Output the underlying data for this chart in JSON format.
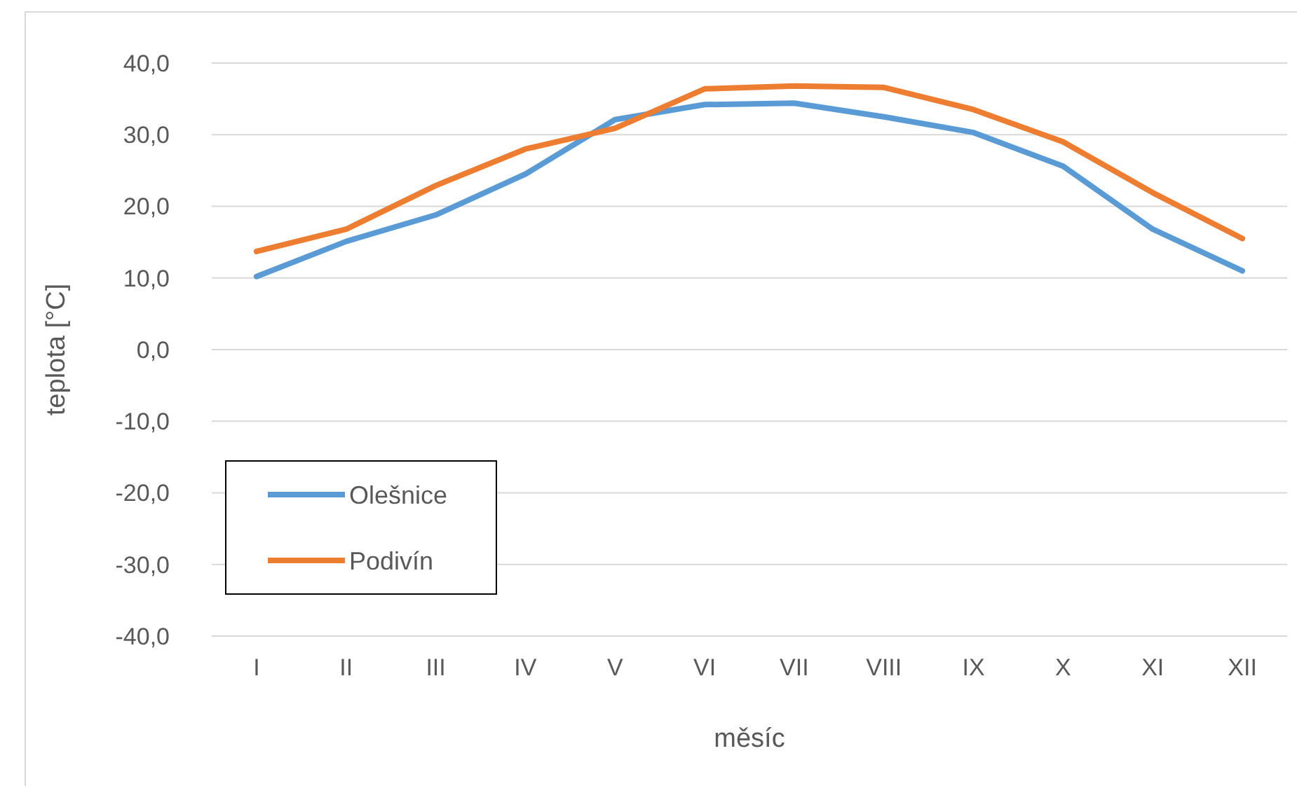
{
  "chart_data": {
    "type": "line",
    "xlabel": "měsíc",
    "ylabel": "teplota [°C]",
    "categories": [
      "I",
      "II",
      "III",
      "IV",
      "V",
      "VI",
      "VII",
      "VIII",
      "IX",
      "X",
      "XI",
      "XII"
    ],
    "series": [
      {
        "name": "Olešnice",
        "color": "#5b9bd5",
        "values": [
          10.2,
          15.1,
          18.8,
          24.5,
          32.1,
          34.2,
          34.4,
          32.5,
          30.3,
          25.6,
          16.8,
          11.0
        ]
      },
      {
        "name": "Podivín",
        "color": "#ed7d31",
        "values": [
          13.7,
          16.8,
          22.9,
          28.0,
          30.9,
          36.4,
          36.8,
          36.6,
          33.5,
          29.0,
          21.9,
          15.5
        ]
      }
    ],
    "ylim": [
      -40,
      40
    ],
    "yticks": [
      {
        "value": -40,
        "label": "-40,0"
      },
      {
        "value": -30,
        "label": "-30,0"
      },
      {
        "value": -20,
        "label": "-20,0"
      },
      {
        "value": -10,
        "label": "-10,0"
      },
      {
        "value": 0,
        "label": "0,0"
      },
      {
        "value": 10,
        "label": "10,0"
      },
      {
        "value": 20,
        "label": "20,0"
      },
      {
        "value": 30,
        "label": "30,0"
      },
      {
        "value": 40,
        "label": "40,0"
      }
    ],
    "grid": "y",
    "legend": "bottom left",
    "marker": "none",
    "line_style": "solid"
  }
}
